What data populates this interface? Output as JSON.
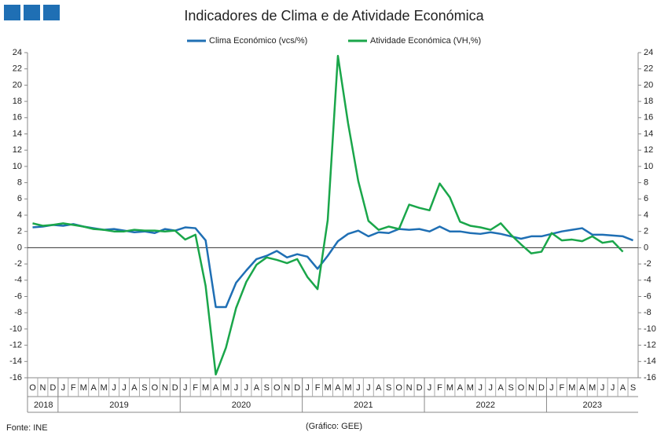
{
  "chart_data": {
    "type": "line",
    "title": "Indicadores de Clima e de Atividade Económica",
    "categories": [
      "O",
      "N",
      "D",
      "J",
      "F",
      "M",
      "A",
      "M",
      "J",
      "J",
      "A",
      "S",
      "O",
      "N",
      "D",
      "J",
      "F",
      "M",
      "A",
      "M",
      "J",
      "J",
      "A",
      "S",
      "O",
      "N",
      "D",
      "J",
      "F",
      "M",
      "A",
      "M",
      "J",
      "J",
      "A",
      "S",
      "O",
      "N",
      "D",
      "J",
      "F",
      "M",
      "A",
      "M",
      "J",
      "J",
      "A",
      "S",
      "O",
      "N",
      "D",
      "J",
      "F",
      "M",
      "A",
      "M",
      "J",
      "J",
      "A",
      "S"
    ],
    "x_groups": [
      "2018",
      "2019",
      "2020",
      "2021",
      "2022",
      "2023"
    ],
    "series": [
      {
        "name": "Clima Económico (vcs/%)",
        "color": "#1f6fb4",
        "values": [
          2.5,
          2.6,
          2.8,
          2.7,
          2.9,
          2.6,
          2.4,
          2.2,
          2.3,
          2.1,
          1.9,
          2.0,
          1.8,
          2.3,
          2.1,
          2.5,
          2.4,
          0.9,
          -7.3,
          -7.3,
          -4.3,
          -2.8,
          -1.4,
          -1.0,
          -0.4,
          -1.2,
          -0.8,
          -1.1,
          -2.6,
          -1.0,
          0.8,
          1.7,
          2.1,
          1.4,
          1.9,
          1.8,
          2.3,
          2.2,
          2.3,
          2.0,
          2.6,
          2.0,
          2.0,
          1.8,
          1.7,
          1.9,
          1.7,
          1.4,
          1.1,
          1.4,
          1.4,
          1.7,
          2.0,
          2.2,
          2.4,
          1.6,
          1.6,
          1.5,
          1.4,
          0.9
        ]
      },
      {
        "name": "Atividade Económica (VH,%)",
        "color": "#1aa64a",
        "values": [
          3.0,
          2.7,
          2.8,
          3.0,
          2.8,
          2.6,
          2.3,
          2.2,
          2.0,
          2.0,
          2.2,
          2.1,
          2.1,
          2.0,
          2.1,
          1.0,
          1.6,
          -4.7,
          -15.6,
          -12.3,
          -7.4,
          -4.2,
          -2.1,
          -1.2,
          -1.5,
          -1.9,
          -1.4,
          -3.6,
          -5.1,
          3.4,
          23.6,
          15.3,
          8.2,
          3.3,
          2.2,
          2.6,
          2.3,
          5.3,
          4.9,
          4.6,
          7.9,
          6.2,
          3.2,
          2.7,
          2.5,
          2.2,
          3.0,
          1.6,
          0.4,
          -0.7,
          -0.5,
          1.8,
          0.9,
          1.0,
          0.8,
          1.4,
          0.6,
          0.8,
          -0.5,
          null
        ]
      }
    ],
    "ylim": [
      -16,
      24
    ],
    "yticks": [
      -16,
      -14,
      -12,
      -10,
      -8,
      -6,
      -4,
      -2,
      0,
      2,
      4,
      6,
      8,
      10,
      12,
      14,
      16,
      18,
      20,
      22,
      24
    ],
    "y2lim": [
      -16,
      24
    ],
    "y2ticks": [
      -16,
      -14,
      -12,
      -10,
      -8,
      -6,
      -4,
      -2,
      0,
      2,
      4,
      6,
      8,
      10,
      12,
      14,
      16,
      18,
      20,
      22,
      24
    ],
    "source": "Fonte: INE",
    "credit": "(Gráfico: GEE)"
  }
}
